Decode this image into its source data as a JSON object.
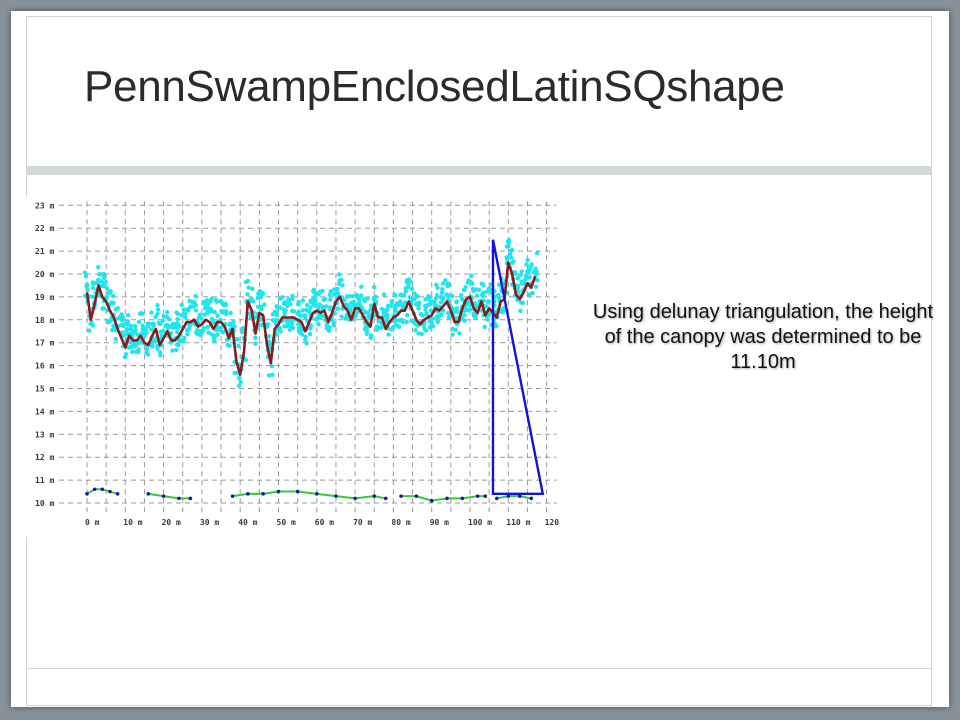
{
  "slide": {
    "title": "PennSwampEnclosedLatinSQshape",
    "caption": "Using delunay triangulation, the height of the canopy was determined to be 11.10m"
  },
  "colors": {
    "points": "#1ee6ee",
    "canopy_line": "#8b1a1a",
    "ground_line": "#33cc33",
    "ground_points": "#1a1aa0",
    "triangle": "#1414d2",
    "grid": "#999999"
  },
  "chart_data": {
    "type": "scatter",
    "x_ticks": [
      "0 m",
      "10 m",
      "20 m",
      "30 m",
      "40 m",
      "50 m",
      "60 m",
      "70 m",
      "80 m",
      "90 m",
      "100 m",
      "110 m",
      "120"
    ],
    "y_ticks": [
      "23 m",
      "22 m",
      "21 m",
      "20 m",
      "19 m",
      "18 m",
      "17 m",
      "16 m",
      "15 m",
      "14 m",
      "13 m",
      "12 m",
      "11 m",
      "10 m"
    ],
    "xlim": [
      0,
      120
    ],
    "ylim": [
      10,
      23
    ],
    "grid": true,
    "canopy_profile": {
      "x": [
        0,
        1,
        2,
        3,
        4,
        5,
        6,
        7,
        8,
        9,
        10,
        11,
        12,
        13,
        14,
        15,
        16,
        17,
        18,
        19,
        20,
        21,
        22,
        23,
        24,
        25,
        26,
        27,
        28,
        29,
        30,
        31,
        32,
        33,
        34,
        35,
        36,
        37,
        38,
        39,
        40,
        41,
        42,
        43,
        44,
        45,
        46,
        47,
        48,
        49,
        50,
        51,
        52,
        53,
        54,
        55,
        56,
        57,
        58,
        59,
        60,
        61,
        62,
        63,
        64,
        65,
        66,
        67,
        68,
        69,
        70,
        71,
        72,
        73,
        74,
        75,
        76,
        77,
        78,
        79,
        80,
        81,
        82,
        83,
        84,
        85,
        86,
        87,
        88,
        89,
        90,
        91,
        92,
        93,
        94,
        95,
        96,
        97,
        98,
        99,
        100,
        101,
        102,
        103,
        104,
        105,
        106,
        107,
        108,
        109,
        110,
        111,
        112,
        113,
        114,
        115,
        116,
        117
      ],
      "y": [
        19.2,
        18.0,
        18.7,
        19.5,
        19.0,
        18.8,
        18.4,
        18.1,
        17.6,
        17.2,
        16.8,
        17.3,
        17.1,
        17.1,
        17.3,
        17.0,
        16.9,
        17.3,
        17.6,
        16.9,
        17.2,
        17.5,
        17.1,
        17.1,
        17.3,
        17.6,
        17.9,
        17.9,
        18.0,
        17.7,
        17.8,
        18.0,
        17.9,
        17.6,
        17.9,
        17.9,
        17.7,
        17.2,
        17.6,
        16.2,
        15.6,
        16.6,
        18.8,
        18.4,
        17.4,
        18.3,
        18.2,
        16.9,
        16.1,
        17.6,
        17.8,
        18.1,
        18.1,
        18.1,
        18.1,
        18.0,
        17.9,
        17.5,
        17.9,
        18.3,
        18.4,
        18.3,
        18.4,
        17.9,
        18.3,
        18.8,
        19.0,
        18.6,
        18.4,
        18.0,
        18.5,
        18.5,
        18.2,
        17.9,
        17.7,
        18.7,
        18.1,
        18.1,
        17.6,
        17.9,
        18.1,
        18.2,
        18.4,
        18.4,
        18.8,
        18.4,
        18.0,
        17.8,
        18.0,
        18.1,
        18.2,
        18.5,
        18.4,
        18.6,
        18.8,
        18.4,
        17.9,
        17.9,
        18.5,
        18.9,
        19.0,
        18.5,
        18.3,
        18.8,
        18.2,
        18.5,
        18.3,
        18.1,
        18.8,
        18.9,
        20.5,
        20.0,
        19.1,
        18.9,
        19.2,
        19.6,
        19.4,
        19.9
      ]
    },
    "ground_segments": [
      {
        "x": [
          0,
          2,
          4,
          6,
          8
        ],
        "y": [
          10.4,
          10.6,
          10.6,
          10.5,
          10.4
        ]
      },
      {
        "x": [
          16,
          20,
          24,
          27
        ],
        "y": [
          10.4,
          10.3,
          10.2,
          10.2
        ]
      },
      {
        "x": [
          38,
          42,
          46,
          50,
          55,
          60,
          65,
          70,
          75,
          78
        ],
        "y": [
          10.3,
          10.4,
          10.4,
          10.5,
          10.5,
          10.4,
          10.3,
          10.2,
          10.3,
          10.2
        ]
      },
      {
        "x": [
          82,
          86,
          90,
          94,
          98,
          102,
          104
        ],
        "y": [
          10.3,
          10.3,
          10.1,
          10.2,
          10.2,
          10.3,
          10.3
        ]
      },
      {
        "x": [
          107,
          110,
          113,
          116
        ],
        "y": [
          10.2,
          10.3,
          10.3,
          10.2
        ]
      }
    ],
    "triangle": {
      "x": [
        106,
        106,
        119,
        106
      ],
      "y": [
        21.5,
        10.4,
        10.4,
        21.5
      ]
    }
  }
}
